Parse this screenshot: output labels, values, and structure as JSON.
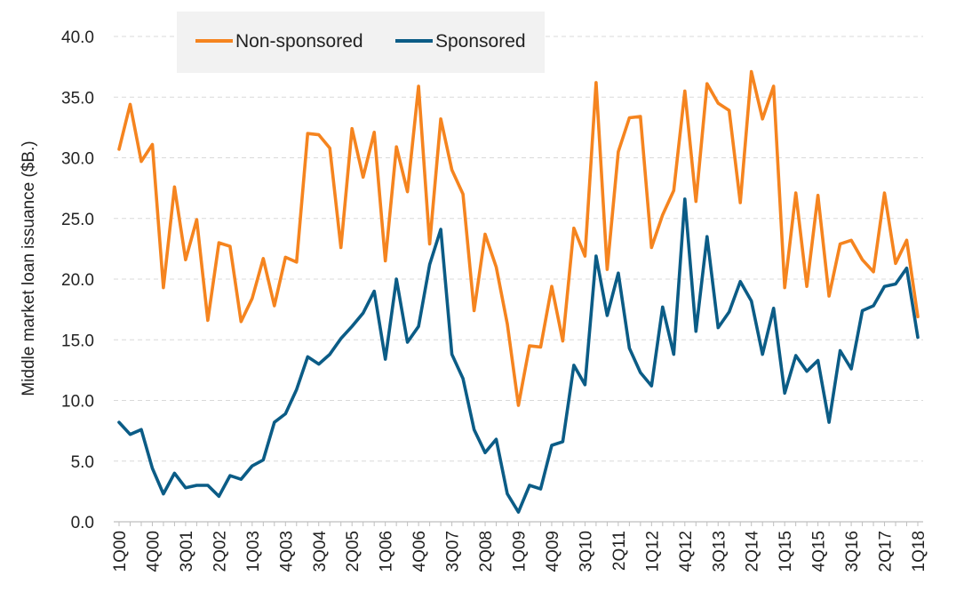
{
  "chart_data": {
    "type": "line",
    "ylabel": "Middle market loan issuance ($B.)",
    "xlabel": "",
    "ylim": [
      0,
      40
    ],
    "y_ticks": [
      "0.0",
      "5.0",
      "10.0",
      "15.0",
      "20.0",
      "25.0",
      "30.0",
      "35.0",
      "40.0"
    ],
    "grid": "horizontal dashed",
    "legend_position": "top-left",
    "categories": [
      "1Q00",
      "2Q00",
      "3Q00",
      "4Q00",
      "1Q01",
      "2Q01",
      "3Q01",
      "4Q01",
      "1Q02",
      "2Q02",
      "3Q02",
      "4Q02",
      "1Q03",
      "2Q03",
      "3Q03",
      "4Q03",
      "1Q04",
      "2Q04",
      "3Q04",
      "4Q04",
      "1Q05",
      "2Q05",
      "3Q05",
      "4Q05",
      "1Q06",
      "2Q06",
      "3Q06",
      "4Q06",
      "1Q07",
      "2Q07",
      "3Q07",
      "4Q07",
      "1Q08",
      "2Q08",
      "3Q08",
      "4Q08",
      "1Q09",
      "2Q09",
      "3Q09",
      "4Q09",
      "1Q10",
      "2Q10",
      "3Q10",
      "4Q10",
      "1Q11",
      "2Q11",
      "3Q11",
      "4Q11",
      "1Q12",
      "2Q12",
      "3Q12",
      "4Q12",
      "1Q13",
      "2Q13",
      "3Q13",
      "4Q13",
      "1Q14",
      "2Q14",
      "3Q14",
      "4Q14",
      "1Q15",
      "2Q15",
      "3Q15",
      "4Q15",
      "1Q16",
      "2Q16",
      "3Q16",
      "4Q16",
      "1Q17",
      "2Q17",
      "3Q17",
      "4Q17",
      "1Q18"
    ],
    "tick_labels": [
      "1Q00",
      "4Q00",
      "3Q01",
      "2Q02",
      "1Q03",
      "4Q03",
      "3Q04",
      "2Q05",
      "1Q06",
      "4Q06",
      "3Q07",
      "2Q08",
      "1Q09",
      "4Q09",
      "3Q10",
      "2Q11",
      "1Q12",
      "4Q12",
      "3Q13",
      "2Q14",
      "1Q15",
      "4Q15",
      "3Q16",
      "2Q17",
      "1Q18"
    ],
    "series": [
      {
        "name": "Non-sponsored",
        "color": "#F5841F",
        "values": [
          30.7,
          34.4,
          29.7,
          31.1,
          19.3,
          27.6,
          21.6,
          24.9,
          16.6,
          23.0,
          22.7,
          16.5,
          18.4,
          21.7,
          17.8,
          21.8,
          21.4,
          32.0,
          31.9,
          30.8,
          22.6,
          32.4,
          28.4,
          32.1,
          21.5,
          30.9,
          27.2,
          35.9,
          22.9,
          33.2,
          29.0,
          27.0,
          17.4,
          23.7,
          21.0,
          16.3,
          9.6,
          14.5,
          14.4,
          19.4,
          14.9,
          24.2,
          21.9,
          36.2,
          20.8,
          30.5,
          33.3,
          33.4,
          22.6,
          25.3,
          27.3,
          35.5,
          26.4,
          36.1,
          34.5,
          33.9,
          26.3,
          37.1,
          33.2,
          35.9,
          19.3,
          27.1,
          19.4,
          26.9,
          18.6,
          22.9,
          23.2,
          21.6,
          20.6,
          27.1,
          21.3,
          23.2,
          16.9
        ]
      },
      {
        "name": "Sponsored",
        "color": "#0B5C86",
        "values": [
          8.2,
          7.2,
          7.6,
          4.4,
          2.3,
          4.0,
          2.8,
          3.0,
          3.0,
          2.1,
          3.8,
          3.5,
          4.6,
          5.1,
          8.2,
          8.9,
          10.9,
          13.6,
          13.0,
          13.8,
          15.1,
          16.1,
          17.2,
          19.0,
          13.4,
          20.0,
          14.8,
          16.1,
          21.2,
          24.1,
          13.8,
          11.8,
          7.6,
          5.7,
          6.8,
          2.3,
          0.8,
          3.0,
          2.7,
          6.3,
          6.6,
          12.9,
          11.3,
          21.9,
          17.0,
          20.5,
          14.3,
          12.3,
          11.2,
          17.7,
          13.8,
          26.6,
          15.7,
          23.5,
          16.0,
          17.3,
          19.8,
          18.2,
          13.8,
          17.6,
          10.6,
          13.7,
          12.4,
          13.3,
          8.2,
          14.1,
          12.6,
          17.4,
          17.8,
          19.4,
          19.6,
          20.9,
          15.2
        ]
      }
    ]
  }
}
